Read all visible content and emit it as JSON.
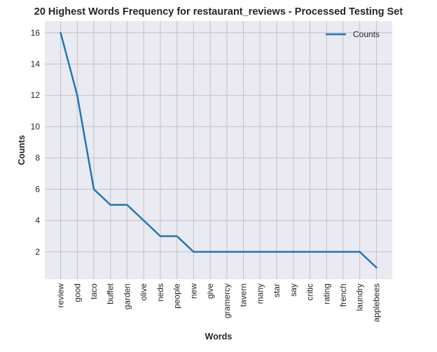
{
  "chart_data": {
    "type": "line",
    "title": "20 Highest Words Frequency for restaurant_reviews - Processed Testing Set",
    "xlabel": "Words",
    "ylabel": "Counts",
    "categories": [
      "review",
      "good",
      "taco",
      "buffet",
      "garden",
      "olive",
      "neds",
      "people",
      "new",
      "give",
      "gramercy",
      "tavern",
      "many",
      "star",
      "say",
      "critic",
      "rating",
      "french",
      "laundry",
      "applebees"
    ],
    "series": [
      {
        "name": "Counts",
        "values": [
          16,
          12,
          6,
          5,
          5,
          4,
          3,
          3,
          2,
          2,
          2,
          2,
          2,
          2,
          2,
          2,
          2,
          2,
          2,
          1
        ],
        "color": "#1f77b4"
      }
    ],
    "ylim": [
      0.25,
      16.75
    ],
    "yticks": [
      2,
      4,
      6,
      8,
      10,
      12,
      14,
      16
    ],
    "grid": true,
    "legend_position": "top-right",
    "background_color": "#eaeaf2",
    "grid_color": "#c2c2c2"
  }
}
